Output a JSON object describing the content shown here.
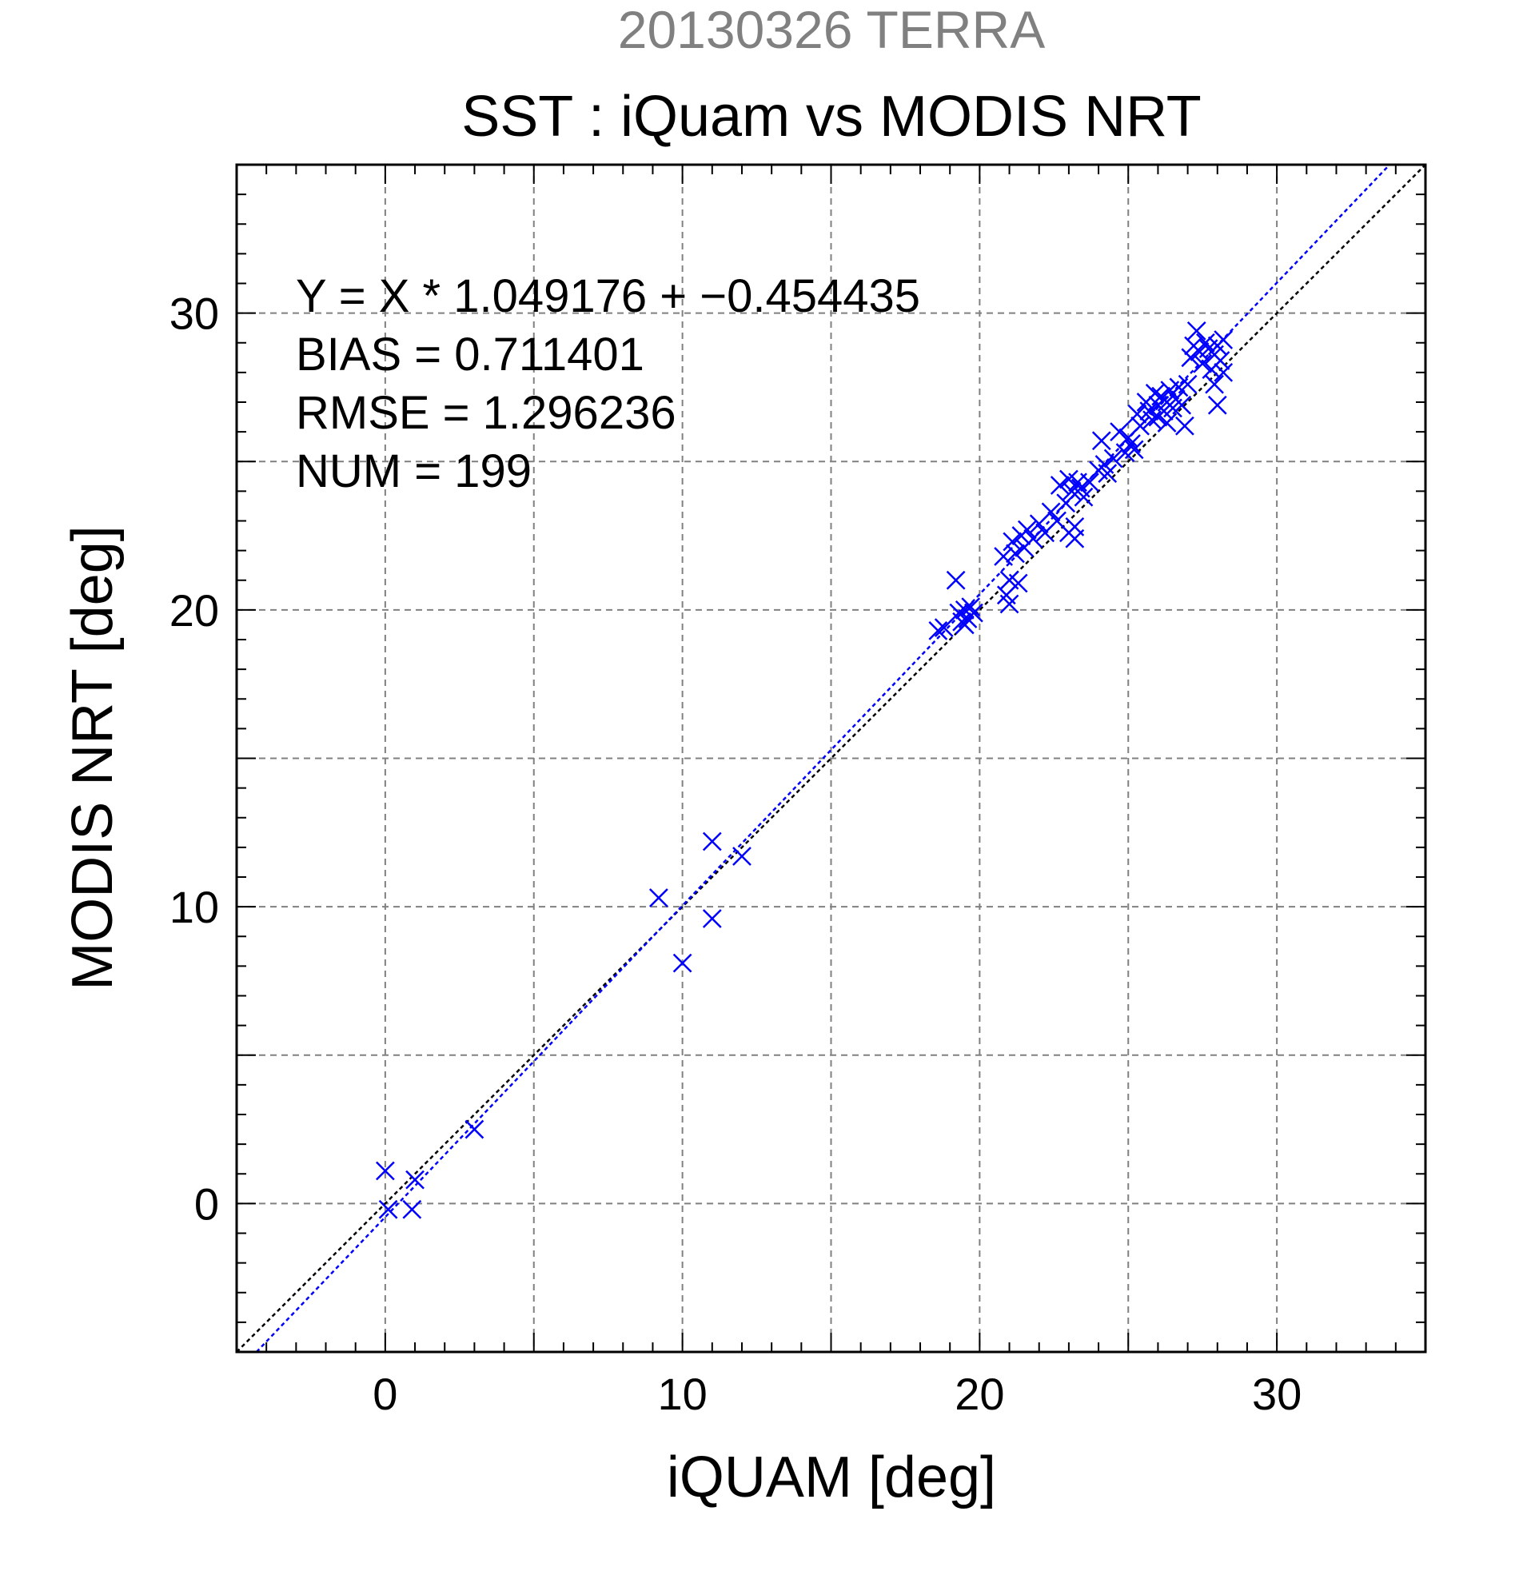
{
  "chart_data": {
    "type": "scatter",
    "subtitle": "20130326 TERRA",
    "title": "SST : iQuam vs MODIS NRT",
    "xlabel": "iQUAM [deg]",
    "ylabel": "MODIS NRT [deg]",
    "xlim": [
      -5,
      35
    ],
    "ylim": [
      -5,
      35
    ],
    "xticks": [
      0,
      10,
      20,
      30
    ],
    "yticks": [
      0,
      10,
      20,
      30
    ],
    "minor_step": 1,
    "grid_step": 5,
    "grid": true,
    "colors": {
      "subtitle": "#808080",
      "points": "#0000ff",
      "fit_line": "#0000ff",
      "identity_line": "#000000",
      "grid": "#808080"
    },
    "stats": {
      "equation": "Y = X * 1.049176 + −0.454435",
      "bias": "BIAS = 0.711401",
      "rmse": "RMSE = 1.296236",
      "num": "NUM = 199"
    },
    "fit": {
      "slope": 1.049176,
      "intercept": -0.454435
    },
    "identity": {
      "slope": 1,
      "intercept": 0
    },
    "points": [
      [
        0.0,
        1.1
      ],
      [
        0.1,
        -0.2
      ],
      [
        1.0,
        0.8
      ],
      [
        0.9,
        -0.2
      ],
      [
        3.0,
        2.5
      ],
      [
        9.2,
        10.3
      ],
      [
        10.0,
        8.1
      ],
      [
        11.0,
        12.2
      ],
      [
        11.0,
        9.6
      ],
      [
        12.0,
        11.7
      ],
      [
        18.6,
        19.3
      ],
      [
        18.8,
        19.4
      ],
      [
        19.2,
        21.0
      ],
      [
        19.3,
        19.9
      ],
      [
        19.4,
        19.6
      ],
      [
        19.5,
        20.0
      ],
      [
        19.6,
        19.7
      ],
      [
        19.7,
        20.1
      ],
      [
        19.5,
        19.5
      ],
      [
        19.8,
        19.9
      ],
      [
        20.8,
        21.8
      ],
      [
        20.9,
        20.5
      ],
      [
        21.0,
        20.2
      ],
      [
        21.0,
        21.0
      ],
      [
        21.1,
        22.3
      ],
      [
        21.2,
        21.9
      ],
      [
        21.3,
        20.9
      ],
      [
        21.4,
        22.5
      ],
      [
        21.5,
        22.1
      ],
      [
        21.6,
        22.7
      ],
      [
        21.8,
        22.4
      ],
      [
        22.0,
        22.9
      ],
      [
        22.2,
        22.6
      ],
      [
        22.4,
        23.3
      ],
      [
        22.6,
        23.0
      ],
      [
        22.7,
        24.2
      ],
      [
        22.9,
        23.6
      ],
      [
        23.0,
        22.6
      ],
      [
        23.0,
        24.4
      ],
      [
        23.1,
        24.0
      ],
      [
        23.2,
        22.8
      ],
      [
        23.2,
        22.4
      ],
      [
        23.3,
        24.3
      ],
      [
        23.4,
        24.1
      ],
      [
        23.5,
        23.8
      ],
      [
        23.7,
        24.3
      ],
      [
        24.0,
        24.7
      ],
      [
        24.1,
        25.7
      ],
      [
        24.2,
        24.9
      ],
      [
        24.3,
        24.6
      ],
      [
        24.5,
        25.1
      ],
      [
        24.7,
        26.0
      ],
      [
        24.9,
        25.3
      ],
      [
        25.0,
        25.8
      ],
      [
        25.1,
        25.6
      ],
      [
        25.2,
        25.4
      ],
      [
        25.3,
        26.6
      ],
      [
        25.4,
        26.2
      ],
      [
        25.6,
        27.0
      ],
      [
        25.7,
        26.7
      ],
      [
        25.8,
        26.4
      ],
      [
        25.9,
        27.3
      ],
      [
        26.0,
        26.9
      ],
      [
        26.0,
        26.5
      ],
      [
        26.1,
        27.2
      ],
      [
        26.2,
        26.7
      ],
      [
        26.3,
        27.0
      ],
      [
        26.3,
        26.3
      ],
      [
        26.4,
        27.4
      ],
      [
        26.5,
        26.8
      ],
      [
        26.6,
        27.1
      ],
      [
        26.7,
        27.5
      ],
      [
        26.8,
        26.9
      ],
      [
        26.9,
        26.2
      ],
      [
        27.0,
        27.6
      ],
      [
        27.1,
        28.5
      ],
      [
        27.2,
        28.9
      ],
      [
        27.3,
        29.4
      ],
      [
        27.4,
        28.7
      ],
      [
        27.5,
        28.3
      ],
      [
        27.6,
        29.0
      ],
      [
        27.7,
        28.8
      ],
      [
        27.8,
        28.1
      ],
      [
        27.9,
        27.6
      ],
      [
        28.0,
        28.9
      ],
      [
        28.0,
        26.9
      ],
      [
        28.1,
        28.4
      ],
      [
        28.2,
        28.0
      ],
      [
        28.2,
        29.1
      ],
      [
        27.9,
        28.6
      ]
    ]
  }
}
